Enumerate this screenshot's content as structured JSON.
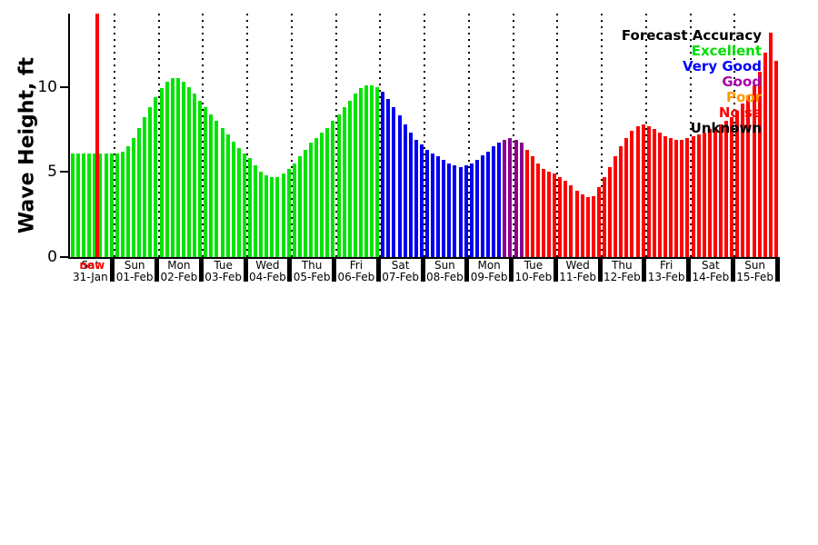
{
  "chart_data": {
    "type": "bar",
    "title": "",
    "ylabel": "Wave Height, ft",
    "yticks": [
      0,
      5,
      10
    ],
    "ylim": [
      0,
      14.3
    ],
    "grid": "dotted vertical lines at each day boundary",
    "bars_per_day": 8,
    "now_marker": {
      "label": "now",
      "day_index": 0,
      "slot": 5,
      "color": "#ff0000"
    },
    "legend": {
      "position": "top-right",
      "title": "Forecast Accuracy",
      "entries": [
        {
          "label": "Excellent",
          "color": "#00dd00"
        },
        {
          "label": "Very Good",
          "color": "#0000ff"
        },
        {
          "label": "Good",
          "color": "#aa00aa"
        },
        {
          "label": "Poor",
          "color": "#ff9900"
        },
        {
          "label": "Noise",
          "color": "#ff0000"
        },
        {
          "label": "Unknown",
          "color": "#000000"
        }
      ]
    },
    "accuracy_key": {
      "E": "Excellent",
      "V": "Very Good",
      "G": "Good",
      "P": "Poor",
      "N": "Noise",
      "U": "Unknown"
    },
    "accuracy_colors": {
      "E": "#00e400",
      "V": "#0000ee",
      "G": "#8c008c",
      "P": "#ff9900",
      "N": "#ff0000",
      "U": "#000000"
    },
    "days": [
      {
        "name": "Sat",
        "date": "31-Jan",
        "values": [
          6.1,
          6.1,
          6.1,
          6.1,
          6.1,
          6.1,
          6.1,
          6.1
        ],
        "accuracy": [
          "E",
          "E",
          "E",
          "E",
          "E",
          "E",
          "E",
          "E"
        ]
      },
      {
        "name": "Sun",
        "date": "01-Feb",
        "values": [
          6.1,
          6.2,
          6.5,
          7.0,
          7.6,
          8.2,
          8.8,
          9.4
        ],
        "accuracy": [
          "E",
          "E",
          "E",
          "E",
          "E",
          "E",
          "E",
          "E"
        ]
      },
      {
        "name": "Mon",
        "date": "02-Feb",
        "values": [
          9.9,
          10.3,
          10.5,
          10.5,
          10.3,
          10.0,
          9.6,
          9.2
        ],
        "accuracy": [
          "E",
          "E",
          "E",
          "E",
          "E",
          "E",
          "E",
          "E"
        ]
      },
      {
        "name": "Tue",
        "date": "03-Feb",
        "values": [
          8.8,
          8.4,
          8.0,
          7.6,
          7.2,
          6.8,
          6.4,
          6.1
        ],
        "accuracy": [
          "E",
          "E",
          "E",
          "E",
          "E",
          "E",
          "E",
          "E"
        ]
      },
      {
        "name": "Wed",
        "date": "04-Feb",
        "values": [
          5.8,
          5.4,
          5.0,
          4.8,
          4.7,
          4.7,
          4.9,
          5.2
        ],
        "accuracy": [
          "E",
          "E",
          "E",
          "E",
          "E",
          "E",
          "E",
          "E"
        ]
      },
      {
        "name": "Thu",
        "date": "05-Feb",
        "values": [
          5.5,
          5.9,
          6.3,
          6.7,
          7.0,
          7.3,
          7.6,
          8.0
        ],
        "accuracy": [
          "E",
          "E",
          "E",
          "E",
          "E",
          "E",
          "E",
          "E"
        ]
      },
      {
        "name": "Fri",
        "date": "06-Feb",
        "values": [
          8.4,
          8.8,
          9.2,
          9.6,
          9.9,
          10.1,
          10.1,
          10.0
        ],
        "accuracy": [
          "E",
          "E",
          "E",
          "E",
          "E",
          "E",
          "E",
          "E"
        ]
      },
      {
        "name": "Sat",
        "date": "07-Feb",
        "values": [
          9.7,
          9.3,
          8.8,
          8.3,
          7.8,
          7.3,
          6.9,
          6.6
        ],
        "accuracy": [
          "V",
          "V",
          "V",
          "V",
          "V",
          "V",
          "V",
          "V"
        ]
      },
      {
        "name": "Sun",
        "date": "08-Feb",
        "values": [
          6.3,
          6.1,
          5.9,
          5.7,
          5.5,
          5.4,
          5.3,
          5.4
        ],
        "accuracy": [
          "V",
          "V",
          "V",
          "V",
          "V",
          "V",
          "V",
          "V"
        ]
      },
      {
        "name": "Mon",
        "date": "09-Feb",
        "values": [
          5.5,
          5.7,
          6.0,
          6.2,
          6.5,
          6.7,
          6.9,
          7.0
        ],
        "accuracy": [
          "V",
          "V",
          "V",
          "V",
          "V",
          "V",
          "G",
          "G"
        ]
      },
      {
        "name": "Tue",
        "date": "10-Feb",
        "values": [
          6.9,
          6.7,
          6.3,
          5.9,
          5.5,
          5.2,
          5.0,
          4.9
        ],
        "accuracy": [
          "G",
          "G",
          "N",
          "N",
          "N",
          "N",
          "N",
          "N"
        ]
      },
      {
        "name": "Wed",
        "date": "11-Feb",
        "values": [
          4.7,
          4.5,
          4.2,
          3.9,
          3.7,
          3.5,
          3.6,
          4.1
        ],
        "accuracy": [
          "N",
          "N",
          "N",
          "N",
          "N",
          "N",
          "N",
          "N"
        ]
      },
      {
        "name": "Thu",
        "date": "12-Feb",
        "values": [
          4.7,
          5.3,
          5.9,
          6.5,
          7.0,
          7.4,
          7.7,
          7.8
        ],
        "accuracy": [
          "N",
          "N",
          "N",
          "N",
          "N",
          "N",
          "N",
          "N"
        ]
      },
      {
        "name": "Fri",
        "date": "13-Feb",
        "values": [
          7.7,
          7.5,
          7.3,
          7.1,
          7.0,
          6.9,
          6.9,
          7.0
        ],
        "accuracy": [
          "N",
          "N",
          "N",
          "N",
          "N",
          "N",
          "N",
          "N"
        ]
      },
      {
        "name": "Sat",
        "date": "14-Feb",
        "values": [
          7.1,
          7.2,
          7.3,
          7.5,
          7.6,
          7.8,
          8.0,
          8.2
        ],
        "accuracy": [
          "N",
          "N",
          "N",
          "N",
          "N",
          "N",
          "N",
          "N"
        ]
      },
      {
        "name": "Sun",
        "date": "15-Feb",
        "values": [
          8.6,
          9.0,
          9.5,
          10.1,
          10.9,
          12.0,
          13.2,
          11.5
        ],
        "accuracy": [
          "N",
          "N",
          "N",
          "N",
          "N",
          "N",
          "N",
          "N"
        ]
      }
    ]
  }
}
